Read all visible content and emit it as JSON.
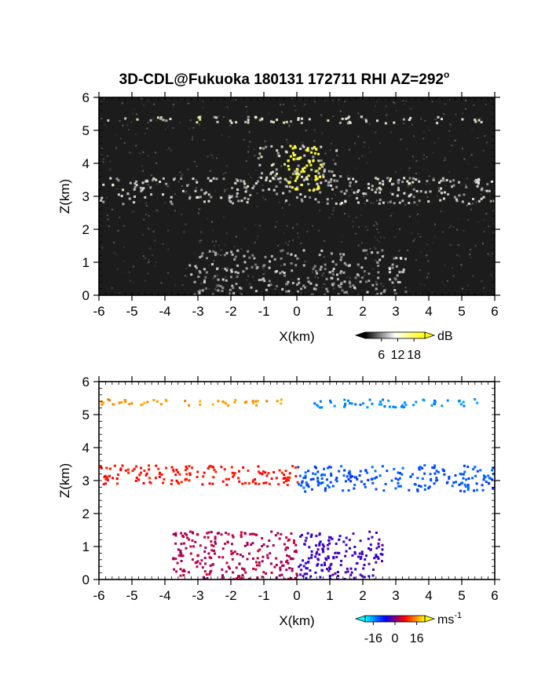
{
  "title": "3D-CDL@Fukuoka 180131 172711 RHI AZ=292",
  "title_degree": "o",
  "chart_data": [
    {
      "type": "heatmap",
      "panel": "reflectivity",
      "xlabel": "X(km)",
      "ylabel": "Z(km)",
      "xlim": [
        -6,
        6
      ],
      "ylim": [
        0,
        6
      ],
      "xticks": [
        "-6",
        "-5",
        "-4",
        "-3",
        "-2",
        "-1",
        "0",
        "1",
        "2",
        "3",
        "4",
        "5",
        "6"
      ],
      "yticks": [
        "0",
        "1",
        "2",
        "3",
        "4",
        "5",
        "6"
      ],
      "background": "#1c1c1c",
      "colorbar": {
        "unit": "dB",
        "ticks": [
          "6",
          "12",
          "18"
        ],
        "range": [
          0,
          22
        ],
        "colors": [
          "#000000",
          "#ffffff",
          "#ffff00"
        ]
      },
      "layers": [
        {
          "name": "cloud-layer",
          "x": [
            -6,
            6
          ],
          "z": [
            2.8,
            3.6
          ],
          "value": 12
        },
        {
          "name": "upper-thin-layer",
          "x": [
            -6,
            5.8
          ],
          "z": [
            5.25,
            5.45
          ],
          "value": 14
        },
        {
          "name": "plume",
          "x": [
            -1.2,
            1.3
          ],
          "z": [
            3.4,
            4.6
          ],
          "value": 13
        },
        {
          "name": "near-field",
          "x": [
            -3.3,
            3.3
          ],
          "z": [
            0,
            1.4
          ],
          "value": 10
        }
      ],
      "highlights": [
        {
          "name": "core",
          "x": [
            -0.3,
            0.7
          ],
          "z": [
            3.2,
            4.6
          ],
          "value": 20
        }
      ]
    },
    {
      "type": "heatmap",
      "panel": "doppler-velocity",
      "xlabel": "X(km)",
      "ylabel": "Z(km)",
      "xlim": [
        -6,
        6
      ],
      "ylim": [
        0,
        6
      ],
      "xticks": [
        "-6",
        "-5",
        "-4",
        "-3",
        "-2",
        "-1",
        "0",
        "1",
        "2",
        "3",
        "4",
        "5",
        "6"
      ],
      "yticks": [
        "0",
        "1",
        "2",
        "3",
        "4",
        "5",
        "6"
      ],
      "background": "#ffffff",
      "colorbar": {
        "unit": "ms",
        "unit_exponent": "-1",
        "ticks": [
          "-16",
          "0",
          "16"
        ],
        "range": [
          -22,
          22
        ],
        "colors": [
          "#00ffff",
          "#0000ff",
          "#ff0000",
          "#ffff00"
        ]
      },
      "regions": [
        {
          "name": "upper-layer-left",
          "x": [
            -6,
            -0.5
          ],
          "z": [
            5.3,
            5.5
          ],
          "velocity": 16
        },
        {
          "name": "upper-layer-right",
          "x": [
            0.5,
            5.6
          ],
          "z": [
            5.25,
            5.5
          ],
          "velocity": -15
        },
        {
          "name": "cloud-layer-left",
          "x": [
            -6,
            0
          ],
          "z": [
            2.9,
            3.5
          ],
          "velocity": 8
        },
        {
          "name": "cloud-layer-right",
          "x": [
            0,
            6
          ],
          "z": [
            2.7,
            3.5
          ],
          "velocity": -12
        },
        {
          "name": "near-field-left",
          "x": [
            -3.8,
            0
          ],
          "z": [
            0,
            1.5
          ],
          "velocity": 3
        },
        {
          "name": "near-field-right",
          "x": [
            0,
            2.6
          ],
          "z": [
            0,
            1.5
          ],
          "velocity": -4
        }
      ]
    }
  ]
}
